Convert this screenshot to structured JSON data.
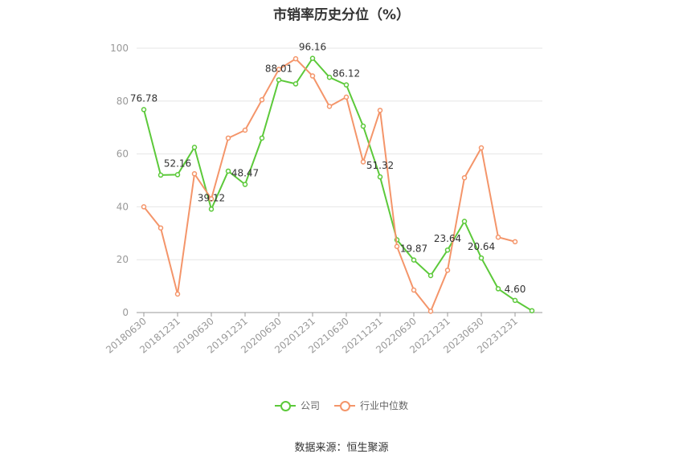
{
  "chart_data": {
    "type": "line",
    "title": "市销率历史分位（%）",
    "source": "数据来源：恒生聚源",
    "ylim": [
      0,
      100
    ],
    "yticks": [
      0,
      20,
      40,
      60,
      80,
      100
    ],
    "grid": true,
    "legend_position": "bottom",
    "x": [
      "20180630",
      "20180930",
      "20181231",
      "20190331",
      "20190630",
      "20190930",
      "20191231",
      "20200331",
      "20200630",
      "20200930",
      "20201231",
      "20210331",
      "20210630",
      "20210930",
      "20211231",
      "20220331",
      "20220630",
      "20220930",
      "20221231",
      "20230331",
      "20230630",
      "20230930",
      "20231231",
      "20240331"
    ],
    "x_tick_labels": [
      "20180630",
      "20181231",
      "20190630",
      "20191231",
      "20200630",
      "20201231",
      "20210630",
      "20211231",
      "20220630",
      "20221231",
      "20230630",
      "20231231"
    ],
    "series": [
      {
        "name": "公司",
        "color": "#5cc93a",
        "values": [
          76.78,
          52.0,
          52.16,
          62.5,
          39.12,
          53.5,
          48.47,
          66.0,
          88.01,
          86.5,
          96.16,
          89.0,
          86.12,
          70.5,
          51.32,
          27.5,
          19.87,
          14.0,
          23.64,
          34.5,
          20.64,
          9.0,
          4.6,
          0.7
        ],
        "labels": [
          {
            "index": 0,
            "text": "76.78"
          },
          {
            "index": 2,
            "text": "52.16"
          },
          {
            "index": 4,
            "text": "39.12"
          },
          {
            "index": 6,
            "text": "48.47"
          },
          {
            "index": 8,
            "text": "88.01"
          },
          {
            "index": 10,
            "text": "96.16"
          },
          {
            "index": 12,
            "text": "86.12"
          },
          {
            "index": 14,
            "text": "51.32"
          },
          {
            "index": 16,
            "text": "19.87"
          },
          {
            "index": 18,
            "text": "23.64"
          },
          {
            "index": 20,
            "text": "20.64"
          },
          {
            "index": 22,
            "text": "4.60"
          }
        ]
      },
      {
        "name": "行业中位数",
        "color": "#f4956a",
        "values": [
          40.0,
          32.0,
          7.0,
          52.5,
          43.0,
          66.0,
          69.0,
          80.5,
          92.0,
          96.0,
          89.5,
          78.0,
          81.5,
          57.0,
          76.5,
          25.0,
          8.5,
          0.5,
          16.0,
          51.0,
          62.3,
          28.5,
          26.8,
          null
        ]
      }
    ]
  }
}
